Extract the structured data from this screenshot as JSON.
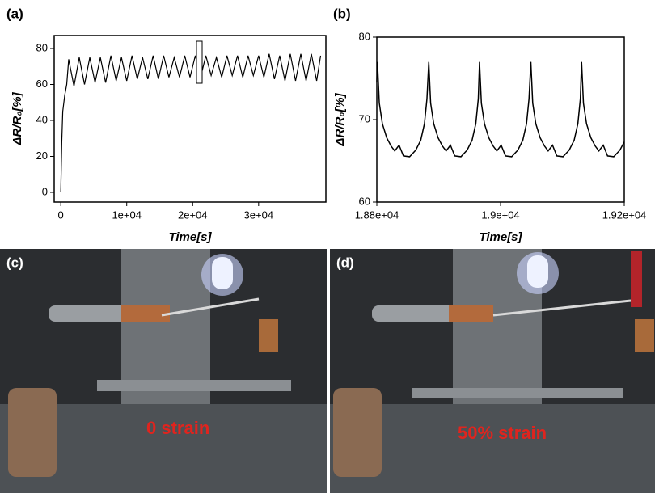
{
  "chart_data": [
    {
      "type": "line",
      "panel_label": "(a)",
      "x_label": "Time[s]",
      "y_label": "ΔR/R₀[%]",
      "color": "#000000",
      "x": [
        0,
        150,
        300,
        600,
        900,
        1200,
        2000,
        2800,
        3600,
        4400,
        5200,
        6000,
        6800,
        7600,
        8400,
        9200,
        10000,
        10800,
        11600,
        12400,
        13200,
        14000,
        14800,
        15600,
        16400,
        17200,
        18000,
        18800,
        19600,
        20400,
        21200,
        22000,
        22800,
        23600,
        24400,
        25200,
        26000,
        26800,
        27600,
        28400,
        29200,
        30000,
        30800,
        31600,
        32400,
        33200,
        34000,
        34800,
        35600,
        36400,
        37200,
        38000,
        38800,
        39400
      ],
      "values": [
        0,
        28,
        45,
        54,
        60,
        74,
        59,
        75,
        60,
        75,
        61,
        75,
        61,
        76,
        62,
        75,
        62,
        76,
        63,
        75,
        63,
        76,
        63,
        76,
        64,
        75,
        64,
        76,
        64,
        76,
        64,
        76,
        65,
        75,
        64,
        76,
        65,
        76,
        64,
        76,
        65,
        76,
        64,
        77,
        63,
        76,
        62,
        77,
        62,
        77,
        62,
        77,
        62,
        76
      ],
      "xlim": [
        -1000,
        40200
      ],
      "ylim": [
        -5.4,
        87.2
      ],
      "xticks": [
        0,
        {
          "value": 10000,
          "label": "1e+04"
        },
        {
          "value": 20000,
          "label": "2e+04"
        },
        {
          "value": 30000,
          "label": "3e+04"
        }
      ],
      "yticks": [
        0,
        20,
        40,
        60,
        80
      ]
    },
    {
      "type": "line",
      "panel_label": "(b)",
      "x_label": "Time[s]",
      "y_label": "ΔR/R₀[%]",
      "color": "#000000",
      "x": [
        18800,
        18801,
        18804,
        18809,
        18816,
        18823,
        18829,
        18836,
        18843,
        18853,
        18863,
        18871,
        18877,
        18881,
        18884,
        18887,
        18892,
        18899,
        18906,
        18912,
        18919,
        18926,
        18936,
        18946,
        18954,
        18960,
        18964,
        18966,
        18969,
        18974,
        18981,
        18988,
        18994,
        19001,
        19008,
        19018,
        19028,
        19036,
        19042,
        19046,
        19049,
        19052,
        19057,
        19064,
        19071,
        19077,
        19084,
        19091,
        19101,
        19111,
        19119,
        19125,
        19129,
        19131,
        19134,
        19139,
        19146,
        19153,
        19159,
        19166,
        19173,
        19183,
        19193,
        19200
      ],
      "values": [
        74.5,
        77,
        72,
        69.5,
        67.8,
        66.8,
        66.2,
        66.9,
        65.6,
        65.5,
        66.3,
        67.5,
        69.5,
        72.5,
        77,
        72,
        69.5,
        67.8,
        66.8,
        66.2,
        66.9,
        65.6,
        65.5,
        66.3,
        67.5,
        69.5,
        72.5,
        77,
        72,
        69.5,
        67.8,
        66.8,
        66.2,
        66.9,
        65.6,
        65.5,
        66.3,
        67.5,
        69.5,
        72.5,
        77,
        72,
        69.5,
        67.8,
        66.8,
        66.2,
        66.9,
        65.6,
        65.5,
        66.3,
        67.5,
        69.5,
        72.5,
        77,
        72,
        69.5,
        67.8,
        66.8,
        66.2,
        66.9,
        65.6,
        65.5,
        66.3,
        67.3
      ],
      "xlim": [
        18800,
        19200
      ],
      "ylim": [
        60,
        80
      ],
      "xticks": [
        {
          "value": 18800,
          "label": "1.88e+04"
        },
        {
          "value": 19000,
          "label": "1.9e+04"
        },
        {
          "value": 19200,
          "label": "1.92e+04"
        }
      ],
      "yticks": [
        60,
        70,
        80
      ]
    }
  ],
  "photos": [
    {
      "label": "(c)",
      "caption": "0 strain"
    },
    {
      "label": "(d)",
      "caption": "50% strain"
    }
  ]
}
